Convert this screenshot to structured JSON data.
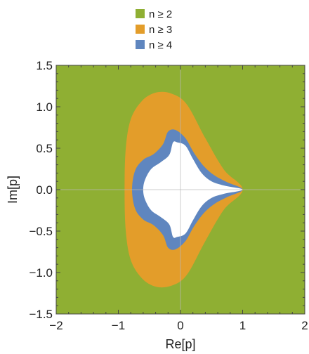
{
  "chart_data": {
    "type": "region_plot",
    "xlabel": "Re[p]",
    "ylabel": "Im[p]",
    "xlim": [
      -2,
      2
    ],
    "ylim": [
      -1.5,
      1.5
    ],
    "x_ticks": [
      -2,
      -1,
      0,
      1,
      2
    ],
    "x_tick_labels": [
      "−2",
      "−1",
      "0",
      "1",
      "2"
    ],
    "y_ticks": [
      -1.5,
      -1.0,
      -0.5,
      0.0,
      0.5,
      1.0,
      1.5
    ],
    "y_tick_labels": [
      "−1.5",
      "−1.0",
      "−0.5",
      "0.0",
      "0.5",
      "1.0",
      "1.5"
    ],
    "legend_position": "top",
    "gridlines_at_origin": true,
    "series": [
      {
        "name": "n ≥ 2",
        "color": "#8faf33",
        "region": "entire plot area"
      },
      {
        "name": "n ≥ 3",
        "color": "#e39d2a",
        "boundary": [
          [
            1.0,
            0.0
          ],
          [
            0.7,
            0.24
          ],
          [
            0.4,
            0.62
          ],
          [
            0.1,
            1.03
          ],
          [
            -0.15,
            1.16
          ],
          [
            -0.4,
            1.17
          ],
          [
            -0.62,
            1.07
          ],
          [
            -0.8,
            0.85
          ],
          [
            -0.88,
            0.5
          ],
          [
            -0.9,
            0.0
          ],
          [
            -0.88,
            -0.5
          ],
          [
            -0.8,
            -0.85
          ],
          [
            -0.62,
            -1.07
          ],
          [
            -0.4,
            -1.17
          ],
          [
            -0.15,
            -1.16
          ],
          [
            0.1,
            -1.03
          ],
          [
            0.4,
            -0.62
          ],
          [
            0.7,
            -0.24
          ]
        ]
      },
      {
        "name": "n ≥ 4",
        "color": "#5f86bf",
        "boundary": [
          [
            1.0,
            0.0
          ],
          [
            0.75,
            0.09
          ],
          [
            0.55,
            0.17
          ],
          [
            0.38,
            0.28
          ],
          [
            0.22,
            0.44
          ],
          [
            0.08,
            0.62
          ],
          [
            -0.08,
            0.72
          ],
          [
            -0.2,
            0.7
          ],
          [
            -0.28,
            0.55
          ],
          [
            -0.43,
            0.43
          ],
          [
            -0.6,
            0.36
          ],
          [
            -0.73,
            0.23
          ],
          [
            -0.78,
            0.0
          ],
          [
            -0.73,
            -0.23
          ],
          [
            -0.6,
            -0.36
          ],
          [
            -0.43,
            -0.43
          ],
          [
            -0.28,
            -0.55
          ],
          [
            -0.2,
            -0.7
          ],
          [
            -0.08,
            -0.72
          ],
          [
            0.08,
            -0.62
          ],
          [
            0.22,
            -0.44
          ],
          [
            0.38,
            -0.28
          ],
          [
            0.55,
            -0.17
          ],
          [
            0.75,
            -0.09
          ]
        ]
      },
      {
        "name": "",
        "color": "#ffffff",
        "boundary": [
          [
            1.0,
            0.0
          ],
          [
            0.7,
            0.05
          ],
          [
            0.5,
            0.1
          ],
          [
            0.34,
            0.2
          ],
          [
            0.2,
            0.37
          ],
          [
            0.08,
            0.53
          ],
          [
            -0.05,
            0.57
          ],
          [
            -0.12,
            0.57
          ],
          [
            -0.18,
            0.42
          ],
          [
            -0.32,
            0.33
          ],
          [
            -0.47,
            0.25
          ],
          [
            -0.57,
            0.12
          ],
          [
            -0.6,
            0.0
          ],
          [
            -0.57,
            -0.12
          ],
          [
            -0.47,
            -0.25
          ],
          [
            -0.32,
            -0.33
          ],
          [
            -0.18,
            -0.42
          ],
          [
            -0.12,
            -0.57
          ],
          [
            -0.05,
            -0.57
          ],
          [
            0.08,
            -0.53
          ],
          [
            0.2,
            -0.37
          ],
          [
            0.34,
            -0.2
          ],
          [
            0.5,
            -0.1
          ],
          [
            0.7,
            -0.05
          ]
        ]
      }
    ]
  }
}
